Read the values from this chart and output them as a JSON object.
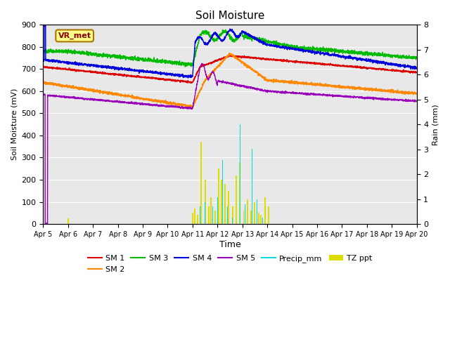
{
  "title": "Soil Moisture",
  "xlabel": "Time",
  "ylabel_left": "Soil Moisture (mV)",
  "ylabel_right": "Rain (mm)",
  "ylim_left": [
    0,
    900
  ],
  "ylim_right": [
    0,
    8.0
  ],
  "x_tick_labels": [
    "Apr 5",
    "Apr 6",
    "Apr 7",
    "Apr 8",
    "Apr 9",
    "Apr 10",
    "Apr 11",
    "Apr 12",
    "Apr 13",
    "Apr 14",
    "Apr 15",
    "Apr 16",
    "Apr 17",
    "Apr 18",
    "Apr 19",
    "Apr 20"
  ],
  "background_color": "#d8d8d8",
  "plot_bg_color": "#e8e8e8",
  "line_colors": {
    "SM1": "#dd0000",
    "SM2": "#ff8800",
    "SM3": "#00bb00",
    "SM4": "#0000dd",
    "SM5": "#9900bb",
    "Precip": "#00dddd",
    "TZ": "#dddd00"
  },
  "vr_met_box_color": "#ffff88",
  "vr_met_edge_color": "#aa7700",
  "vr_met_text_color": "#880000",
  "legend_label_box": "VR_met",
  "title_fontsize": 11,
  "grid_color": "#ffffff"
}
